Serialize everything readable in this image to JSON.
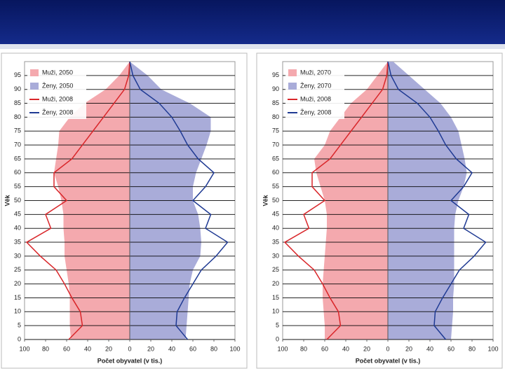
{
  "chart_data": [
    {
      "type": "pyramid",
      "x_label": "Počet obyvatel (v tis.)",
      "y_label": "Věk",
      "xlim": [
        -100,
        100
      ],
      "xticks": [
        {
          "value": -100,
          "label": "100"
        },
        {
          "value": -80,
          "label": "80"
        },
        {
          "value": -60,
          "label": "60"
        },
        {
          "value": -40,
          "label": "40"
        },
        {
          "value": -20,
          "label": "20"
        },
        0,
        20,
        40,
        60,
        80,
        100
      ],
      "ylim": [
        0,
        100
      ],
      "yticks": [
        0,
        5,
        10,
        15,
        20,
        25,
        30,
        35,
        40,
        45,
        50,
        55,
        60,
        65,
        70,
        75,
        80,
        85,
        90,
        95
      ],
      "grid": true,
      "legend": "upper left",
      "y": [
        0,
        5,
        10,
        15,
        20,
        25,
        30,
        35,
        40,
        45,
        50,
        55,
        60,
        65,
        70,
        75,
        80,
        85,
        90,
        95,
        100
      ],
      "series": [
        {
          "name": "Muži, 2050",
          "color": "#f4a9ae",
          "kind": "area",
          "side": "left",
          "values": [
            56,
            57,
            57,
            57,
            58,
            60,
            62,
            62,
            63,
            63,
            65,
            68,
            72,
            70,
            68,
            67,
            57,
            43,
            23,
            10,
            0
          ]
        },
        {
          "name": "Ženy, 2050",
          "color": "#a9acd9",
          "kind": "area",
          "side": "right",
          "values": [
            53,
            54,
            55,
            56,
            57,
            60,
            67,
            68,
            67,
            65,
            60,
            60,
            63,
            68,
            73,
            77,
            77,
            57,
            30,
            17,
            0
          ]
        },
        {
          "name": "Muži, 2008",
          "color": "#d9262a",
          "kind": "line",
          "side": "left",
          "values": [
            58,
            45,
            47,
            55,
            62,
            70,
            85,
            98,
            75,
            80,
            60,
            72,
            72,
            55,
            45,
            35,
            25,
            15,
            5,
            1,
            0
          ]
        },
        {
          "name": "Ženy, 2008",
          "color": "#1f3a93",
          "kind": "line",
          "side": "right",
          "values": [
            55,
            44,
            45,
            52,
            60,
            68,
            82,
            93,
            72,
            77,
            60,
            72,
            80,
            65,
            55,
            48,
            40,
            28,
            10,
            3,
            0
          ]
        }
      ]
    },
    {
      "type": "pyramid",
      "x_label": "Počet obyvatel (v tis.)",
      "y_label": "Věk",
      "xlim": [
        -100,
        100
      ],
      "xticks": [
        {
          "value": -100,
          "label": "100"
        },
        {
          "value": -80,
          "label": "80"
        },
        {
          "value": -60,
          "label": "60"
        },
        {
          "value": -40,
          "label": "40"
        },
        {
          "value": -20,
          "label": "20"
        },
        0,
        20,
        40,
        60,
        80,
        100
      ],
      "ylim": [
        0,
        100
      ],
      "yticks": [
        0,
        5,
        10,
        15,
        20,
        25,
        30,
        35,
        40,
        45,
        50,
        55,
        60,
        65,
        70,
        75,
        80,
        85,
        90,
        95
      ],
      "grid": true,
      "legend": "upper left",
      "y": [
        0,
        5,
        10,
        15,
        20,
        25,
        30,
        35,
        40,
        45,
        50,
        55,
        60,
        65,
        70,
        75,
        80,
        85,
        90,
        95,
        100
      ],
      "series": [
        {
          "name": "Muži, 2070",
          "color": "#f4a9ae",
          "kind": "area",
          "side": "left",
          "values": [
            60,
            60,
            61,
            62,
            62,
            61,
            60,
            59,
            58,
            58,
            60,
            64,
            68,
            70,
            60,
            55,
            45,
            35,
            20,
            10,
            0
          ]
        },
        {
          "name": "Ženy, 2070",
          "color": "#a9acd9",
          "kind": "area",
          "side": "right",
          "values": [
            60,
            61,
            62,
            62,
            63,
            63,
            63,
            63,
            63,
            64,
            67,
            72,
            75,
            73,
            70,
            67,
            60,
            50,
            35,
            20,
            5
          ]
        },
        {
          "name": "Muži, 2008",
          "color": "#d9262a",
          "kind": "line",
          "side": "left",
          "values": [
            58,
            45,
            47,
            55,
            62,
            70,
            85,
            98,
            75,
            80,
            60,
            72,
            72,
            55,
            45,
            35,
            25,
            15,
            5,
            1,
            0
          ]
        },
        {
          "name": "Ženy, 2008",
          "color": "#1f3a93",
          "kind": "line",
          "side": "right",
          "values": [
            55,
            44,
            45,
            52,
            60,
            68,
            82,
            93,
            72,
            77,
            60,
            72,
            80,
            65,
            55,
            48,
            40,
            28,
            10,
            3,
            0
          ]
        }
      ]
    }
  ]
}
